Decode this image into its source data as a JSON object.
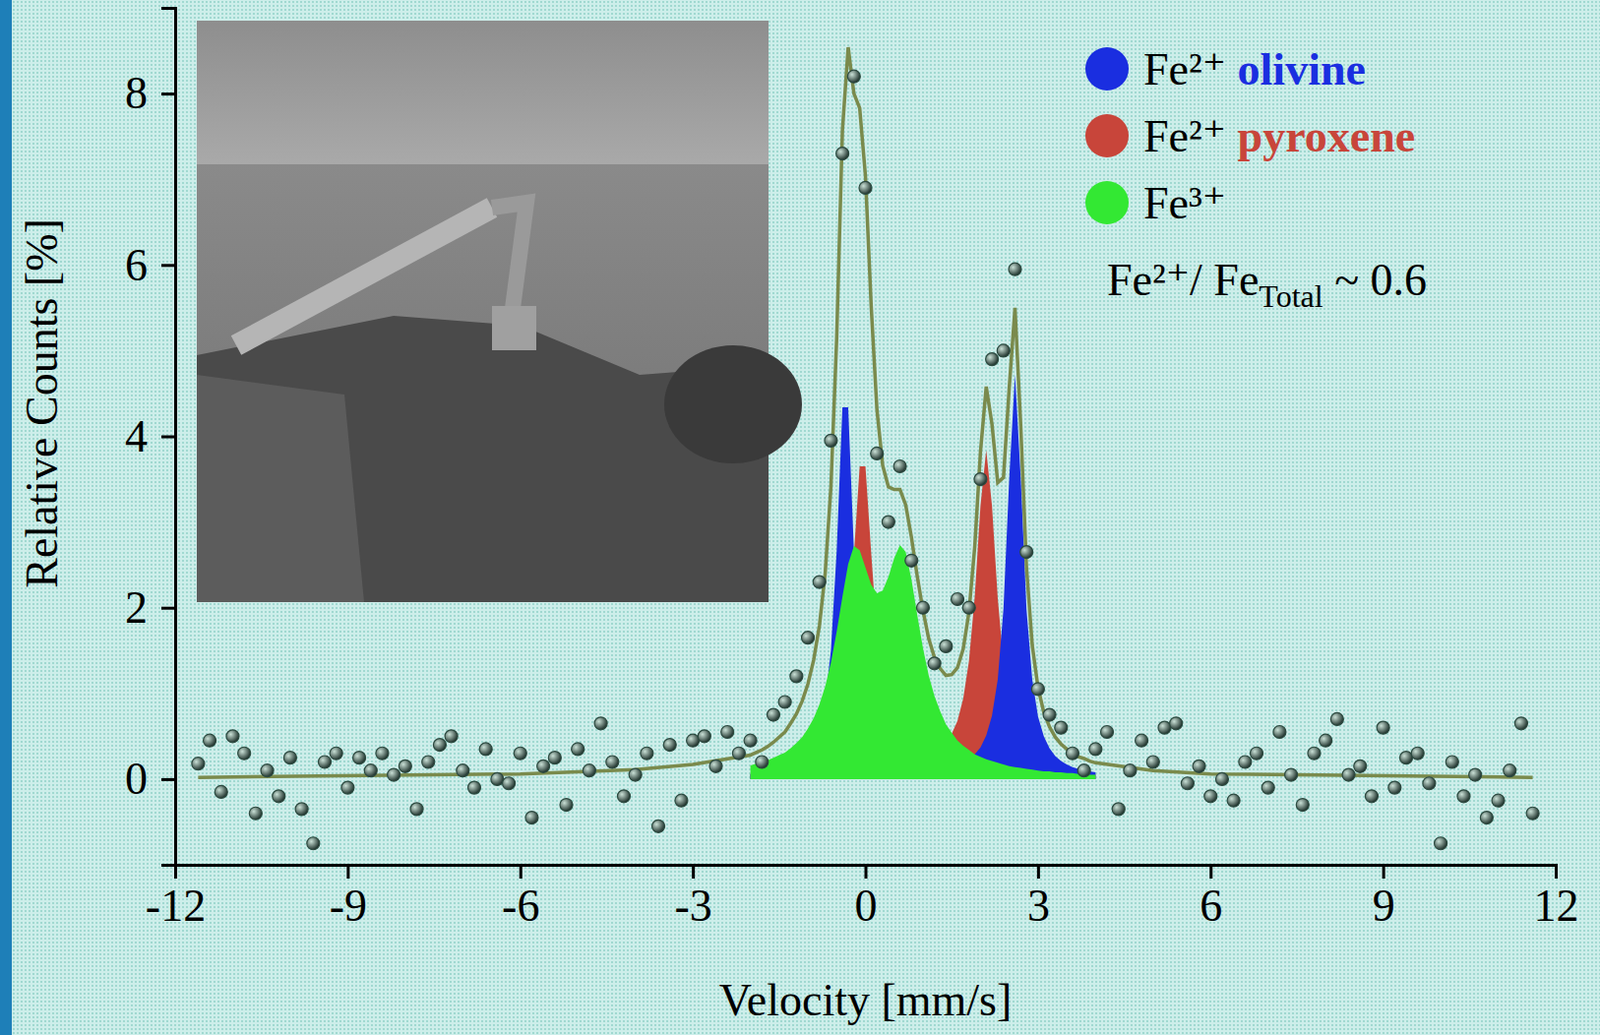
{
  "chart_data": {
    "type": "scatter",
    "x_label": "Velocity [mm/s]",
    "y_label": "Relative Counts [%]",
    "xlim": [
      -12,
      12
    ],
    "xticks": [
      -12,
      -9,
      -6,
      -3,
      0,
      3,
      6,
      9,
      12
    ],
    "ylim": [
      -1,
      9
    ],
    "yticks": [
      0,
      2,
      4,
      6,
      8
    ],
    "grid": false,
    "legend": "upper right",
    "annotation": [
      "Fe²⁺/ Fe",
      "Total",
      " ~ 0.6"
    ],
    "series": [
      {
        "name": "Fe²⁺ olivine",
        "type": "area",
        "color": "#1a2ee0",
        "x": [
          -2.0,
          -1.9,
          -1.8,
          -1.7,
          -1.6,
          -1.5,
          -1.4,
          -1.3,
          -1.2,
          -1.1,
          -1.0,
          -0.9,
          -0.8,
          -0.7,
          -0.6,
          -0.5,
          -0.4,
          -0.3,
          -0.2,
          -0.1,
          0.0,
          0.1,
          0.2,
          0.3,
          0.4,
          0.5,
          0.6,
          0.7,
          0.8,
          0.9,
          1.0,
          1.1,
          1.2,
          1.3,
          1.4,
          1.5,
          1.6,
          1.7,
          1.8,
          1.9,
          2.0,
          2.1,
          2.2,
          2.3,
          2.4,
          2.5,
          2.6,
          2.7,
          2.8,
          2.9,
          3.0,
          3.1,
          3.2,
          3.3,
          3.4,
          3.5,
          3.6,
          3.7,
          3.8,
          3.9,
          4.0
        ],
        "values": [
          0.06,
          0.06,
          0.07,
          0.08,
          0.09,
          0.11,
          0.13,
          0.16,
          0.19,
          0.24,
          0.31,
          0.42,
          0.6,
          0.91,
          1.5,
          2.66,
          4.34,
          4.34,
          2.66,
          1.51,
          0.92,
          0.61,
          0.43,
          0.33,
          0.25,
          0.21,
          0.18,
          0.16,
          0.14,
          0.13,
          0.13,
          0.12,
          0.12,
          0.13,
          0.14,
          0.15,
          0.17,
          0.19,
          0.23,
          0.29,
          0.37,
          0.51,
          0.74,
          1.16,
          1.99,
          3.51,
          4.72,
          3.51,
          1.98,
          1.16,
          0.73,
          0.5,
          0.36,
          0.27,
          0.21,
          0.17,
          0.14,
          0.12,
          0.1,
          0.09,
          0.08
        ]
      },
      {
        "name": "Fe²⁺ pyroxene",
        "type": "area",
        "color": "#c8453a",
        "x": [
          -2.0,
          -1.9,
          -1.8,
          -1.7,
          -1.6,
          -1.5,
          -1.4,
          -1.3,
          -1.2,
          -1.1,
          -1.0,
          -0.9,
          -0.8,
          -0.7,
          -0.6,
          -0.5,
          -0.4,
          -0.3,
          -0.2,
          -0.1,
          0.0,
          0.1,
          0.2,
          0.3,
          0.4,
          0.5,
          0.6,
          0.7,
          0.8,
          0.9,
          1.0,
          1.1,
          1.2,
          1.3,
          1.4,
          1.5,
          1.6,
          1.7,
          1.8,
          1.9,
          2.0,
          2.1,
          2.2,
          2.3,
          2.4,
          2.5,
          2.6,
          2.7,
          2.8,
          2.9,
          3.0,
          3.1,
          3.2,
          3.3,
          3.4,
          3.5,
          3.6,
          3.7,
          3.8,
          3.9,
          4.0
        ],
        "values": [
          0.06,
          0.07,
          0.07,
          0.08,
          0.09,
          0.1,
          0.11,
          0.13,
          0.15,
          0.18,
          0.21,
          0.26,
          0.32,
          0.41,
          0.55,
          0.76,
          1.1,
          1.69,
          2.62,
          3.65,
          3.65,
          2.64,
          1.71,
          1.13,
          0.8,
          0.59,
          0.47,
          0.39,
          0.35,
          0.32,
          0.31,
          0.31,
          0.33,
          0.37,
          0.43,
          0.53,
          0.68,
          0.94,
          1.38,
          2.13,
          3.19,
          3.84,
          3.19,
          2.11,
          1.36,
          0.91,
          0.64,
          0.48,
          0.37,
          0.29,
          0.24,
          0.19,
          0.16,
          0.14,
          0.12,
          0.11,
          0.09,
          0.08,
          0.08,
          0.07,
          0.06
        ]
      },
      {
        "name": "Fe³⁺",
        "type": "area",
        "color": "#33e833",
        "x": [
          -2.0,
          -1.9,
          -1.8,
          -1.7,
          -1.6,
          -1.5,
          -1.4,
          -1.3,
          -1.2,
          -1.1,
          -1.0,
          -0.9,
          -0.8,
          -0.7,
          -0.6,
          -0.5,
          -0.4,
          -0.3,
          -0.2,
          -0.1,
          0.0,
          0.1,
          0.2,
          0.3,
          0.4,
          0.5,
          0.6,
          0.7,
          0.8,
          0.9,
          1.0,
          1.1,
          1.2,
          1.3,
          1.4,
          1.5,
          1.6,
          1.7,
          1.8,
          1.9,
          2.0,
          2.1,
          2.2,
          2.3,
          2.4,
          2.5,
          2.6,
          2.7,
          2.8,
          2.9,
          3.0,
          3.1,
          3.2,
          3.3,
          3.4,
          3.5,
          3.6,
          3.7,
          3.8,
          3.9,
          4.0
        ],
        "values": [
          0.16,
          0.18,
          0.2,
          0.22,
          0.25,
          0.28,
          0.31,
          0.36,
          0.42,
          0.49,
          0.59,
          0.71,
          0.87,
          1.08,
          1.36,
          1.72,
          2.13,
          2.51,
          2.72,
          2.67,
          2.47,
          2.27,
          2.17,
          2.2,
          2.36,
          2.58,
          2.73,
          2.65,
          2.33,
          1.92,
          1.53,
          1.21,
          0.97,
          0.79,
          0.64,
          0.54,
          0.45,
          0.39,
          0.34,
          0.29,
          0.26,
          0.23,
          0.21,
          0.19,
          0.17,
          0.15,
          0.14,
          0.13,
          0.12,
          0.11,
          0.1,
          0.09,
          0.09,
          0.08,
          0.08,
          0.07,
          0.07,
          0.06,
          0.06,
          0.05,
          0.05
        ]
      },
      {
        "type": "line",
        "color": "#7a8a4c",
        "x": [
          -11.6,
          -6,
          -4,
          -3,
          -2.0,
          -1.9,
          -1.8,
          -1.7,
          -1.6,
          -1.5,
          -1.4,
          -1.3,
          -1.2,
          -1.1,
          -1.0,
          -0.9,
          -0.8,
          -0.7,
          -0.6,
          -0.5,
          -0.4,
          -0.3,
          -0.2,
          -0.1,
          0.0,
          0.1,
          0.2,
          0.3,
          0.4,
          0.5,
          0.6,
          0.7,
          0.8,
          0.9,
          1.0,
          1.1,
          1.2,
          1.3,
          1.4,
          1.5,
          1.6,
          1.7,
          1.8,
          1.9,
          2.0,
          2.1,
          2.2,
          2.3,
          2.4,
          2.5,
          2.6,
          2.7,
          2.8,
          2.9,
          3.0,
          3.1,
          3.2,
          3.3,
          3.4,
          3.5,
          3.6,
          3.7,
          3.8,
          3.9,
          4.0,
          5,
          6,
          11.6
        ],
        "values": [
          0.02,
          0.06,
          0.11,
          0.17,
          0.28,
          0.31,
          0.34,
          0.38,
          0.43,
          0.49,
          0.55,
          0.65,
          0.76,
          0.91,
          1.11,
          1.39,
          1.79,
          2.4,
          3.41,
          5.14,
          7.57,
          8.54,
          8.0,
          7.83,
          7.04,
          5.52,
          4.31,
          3.66,
          3.41,
          3.38,
          3.38,
          3.2,
          2.82,
          2.37,
          1.97,
          1.64,
          1.42,
          1.29,
          1.21,
          1.22,
          1.3,
          1.52,
          1.95,
          2.71,
          3.82,
          4.58,
          4.14,
          3.46,
          3.52,
          4.57,
          5.5,
          4.12,
          2.47,
          1.56,
          1.07,
          0.78,
          0.61,
          0.49,
          0.41,
          0.35,
          0.3,
          0.26,
          0.24,
          0.21,
          0.19,
          0.1,
          0.06,
          0.02
        ]
      },
      {
        "type": "scatter",
        "color": "#2c4a40",
        "marker": "circle",
        "x": [
          -11.6,
          -11.4,
          -11.2,
          -11.0,
          -10.8,
          -10.6,
          -10.4,
          -10.2,
          -10.0,
          -9.8,
          -9.6,
          -9.4,
          -9.2,
          -9.0,
          -8.8,
          -8.6,
          -8.4,
          -8.2,
          -8.0,
          -7.8,
          -7.6,
          -7.4,
          -7.2,
          -7.0,
          -6.8,
          -6.6,
          -6.4,
          -6.2,
          -6.0,
          -5.8,
          -5.6,
          -5.4,
          -5.2,
          -5.0,
          -4.8,
          -4.6,
          -4.4,
          -4.2,
          -4.0,
          -3.8,
          -3.6,
          -3.4,
          -3.2,
          -3.0,
          -2.8,
          -2.6,
          -2.4,
          -2.2,
          -2.0,
          -1.8,
          -1.6,
          -1.4,
          -1.2,
          -1.0,
          -0.8,
          -0.6,
          -0.4,
          -0.2,
          0.0,
          0.2,
          0.4,
          0.6,
          0.8,
          1.0,
          1.2,
          1.4,
          1.6,
          1.8,
          2.0,
          2.2,
          2.4,
          2.6,
          2.8,
          3.0,
          3.2,
          3.4,
          3.6,
          3.8,
          4.0,
          4.2,
          4.4,
          4.6,
          4.8,
          5.0,
          5.2,
          5.4,
          5.6,
          5.8,
          6.0,
          6.2,
          6.4,
          6.6,
          6.8,
          7.0,
          7.2,
          7.4,
          7.6,
          7.8,
          8.0,
          8.2,
          8.4,
          8.6,
          8.8,
          9.0,
          9.2,
          9.4,
          9.6,
          9.8,
          10.0,
          10.2,
          10.4,
          10.6,
          10.8,
          11.0,
          11.2,
          11.4,
          11.6
        ],
        "values": [
          0.18,
          0.45,
          -0.15,
          0.5,
          0.3,
          -0.4,
          0.1,
          -0.2,
          0.25,
          -0.35,
          -0.75,
          0.2,
          0.3,
          -0.1,
          0.25,
          0.1,
          0.3,
          0.05,
          0.15,
          -0.35,
          0.2,
          0.4,
          0.5,
          0.1,
          -0.1,
          0.35,
          0.0,
          -0.05,
          0.3,
          -0.45,
          0.15,
          0.25,
          -0.3,
          0.35,
          0.1,
          0.65,
          0.2,
          -0.2,
          0.05,
          0.3,
          -0.55,
          0.4,
          -0.25,
          0.45,
          0.5,
          0.15,
          0.55,
          0.3,
          0.45,
          0.2,
          0.75,
          0.9,
          1.2,
          1.65,
          2.3,
          3.95,
          7.3,
          8.2,
          6.9,
          3.8,
          3.0,
          3.65,
          2.55,
          2.0,
          1.35,
          1.55,
          2.1,
          2.0,
          3.5,
          4.9,
          5.0,
          5.95,
          2.65,
          1.05,
          0.75,
          0.6,
          0.3,
          0.1,
          0.35,
          0.55,
          -0.35,
          0.1,
          0.45,
          0.2,
          0.6,
          0.65,
          -0.05,
          0.15,
          -0.2,
          0.0,
          -0.25,
          0.2,
          0.3,
          -0.1,
          0.55,
          0.05,
          -0.3,
          0.3,
          0.45,
          0.7,
          0.05,
          0.15,
          -0.2,
          0.6,
          -0.1,
          0.25,
          0.3,
          -0.05,
          -0.75,
          0.2,
          -0.2,
          0.05,
          -0.45,
          -0.25,
          0.1,
          0.65,
          -0.4
        ]
      }
    ]
  }
}
